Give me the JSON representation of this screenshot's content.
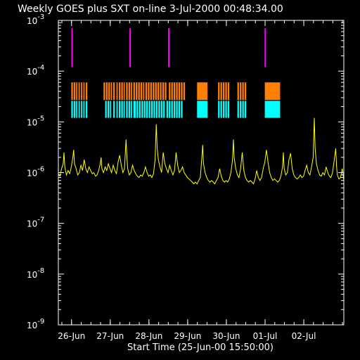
{
  "chart_data": {
    "type": "line",
    "title": "Weekly GOES plus SXT on-line  3-Jul-2000 00:48:34.00",
    "xlabel": "Start Time (25-Jun-00 15:50:00)",
    "ylabel": "",
    "yscale": "log",
    "ylim": [
      1e-09,
      0.001
    ],
    "xlim_hours": [
      0,
      177
    ],
    "y_ticks": [
      {
        "base": "10",
        "exp": "-9",
        "value": 1e-09
      },
      {
        "base": "10",
        "exp": "-8",
        "value": 1e-08
      },
      {
        "base": "10",
        "exp": "-7",
        "value": 1e-07
      },
      {
        "base": "10",
        "exp": "-6",
        "value": 1e-06
      },
      {
        "base": "10",
        "exp": "-5",
        "value": 1e-05
      },
      {
        "base": "10",
        "exp": "-4",
        "value": 0.0001
      },
      {
        "base": "10",
        "exp": "-3",
        "value": 0.001
      }
    ],
    "x_ticks": [
      {
        "label": "26-Jun",
        "hour": 8.17
      },
      {
        "label": "27-Jun",
        "hour": 32.17
      },
      {
        "label": "28-Jun",
        "hour": 56.17
      },
      {
        "label": "29-Jun",
        "hour": 80.17
      },
      {
        "label": "30-Jun",
        "hour": 104.17
      },
      {
        "label": "01-Jul",
        "hour": 128.17
      },
      {
        "label": "02-Jul",
        "hour": 152.17
      }
    ],
    "colors": {
      "goes_flux": "#ffff00",
      "magenta_marks": "#ff00ff",
      "orange_coverage": "#ff8000",
      "cyan_coverage": "#00ffff",
      "axes": "#ffffff"
    },
    "series": [
      {
        "color": "#ffff00",
        "points": [
          [
            0,
            9.5e-07
          ],
          [
            1,
            8.5e-07
          ],
          [
            2,
            1.2e-06
          ],
          [
            3,
            1.5e-06
          ],
          [
            3.5,
            2.5e-06
          ],
          [
            4,
            1.3e-06
          ],
          [
            5,
            9e-07
          ],
          [
            6,
            1.1e-06
          ],
          [
            7,
            9.5e-07
          ],
          [
            8,
            1.3e-06
          ],
          [
            9,
            2e-06
          ],
          [
            9.5,
            2.8e-06
          ],
          [
            10,
            1.5e-06
          ],
          [
            11,
            1.2e-06
          ],
          [
            12,
            9e-07
          ],
          [
            13,
            1e-06
          ],
          [
            14,
            1.4e-06
          ],
          [
            15,
            1.1e-06
          ],
          [
            16,
            1.8e-06
          ],
          [
            17,
            1.2e-06
          ],
          [
            18,
            1e-06
          ],
          [
            19,
            1.3e-06
          ],
          [
            20,
            1.1e-06
          ],
          [
            21,
            9.5e-07
          ],
          [
            22,
            1e-06
          ],
          [
            23,
            8.5e-07
          ],
          [
            24,
            9e-07
          ],
          [
            25,
            1.1e-06
          ],
          [
            26,
            1.5e-06
          ],
          [
            26.5,
            2e-06
          ],
          [
            27,
            1.2e-06
          ],
          [
            28,
            1e-06
          ],
          [
            29,
            1.3e-06
          ],
          [
            30,
            1.1e-06
          ],
          [
            31,
            1.5e-06
          ],
          [
            32,
            1.2e-06
          ],
          [
            33,
            1e-06
          ],
          [
            34,
            1.4e-06
          ],
          [
            35,
            1.1e-06
          ],
          [
            36,
            9.5e-07
          ],
          [
            37,
            1.6e-06
          ],
          [
            38,
            2.2e-06
          ],
          [
            39,
            1.4e-06
          ],
          [
            40,
            1e-06
          ],
          [
            41,
            1.2e-06
          ],
          [
            42,
            4.5e-06
          ],
          [
            42.5,
            2e-06
          ],
          [
            43,
            1.2e-06
          ],
          [
            44,
            9e-07
          ],
          [
            45,
            1e-06
          ],
          [
            46,
            1.4e-06
          ],
          [
            47,
            1.1e-06
          ],
          [
            48,
            9.5e-07
          ],
          [
            49,
            8.5e-07
          ],
          [
            50,
            8e-07
          ],
          [
            51,
            9e-07
          ],
          [
            52,
            8.5e-07
          ],
          [
            53,
            1e-06
          ],
          [
            54,
            1.3e-06
          ],
          [
            55,
            1e-06
          ],
          [
            56,
            8.5e-07
          ],
          [
            57,
            9e-07
          ],
          [
            58,
            8e-07
          ],
          [
            59,
            9.5e-07
          ],
          [
            60,
            1.8e-06
          ],
          [
            60.7,
            9e-06
          ],
          [
            61.3,
            3e-06
          ],
          [
            62,
            1.8e-06
          ],
          [
            63,
            1.3e-06
          ],
          [
            64,
            1e-06
          ],
          [
            65,
            2.5e-06
          ],
          [
            66,
            1.5e-06
          ],
          [
            67,
            1.2e-06
          ],
          [
            68,
            1e-06
          ],
          [
            69,
            1.4e-06
          ],
          [
            70,
            1.1e-06
          ],
          [
            71,
            9e-07
          ],
          [
            72,
            1.1e-06
          ],
          [
            73,
            2.5e-06
          ],
          [
            74,
            1.4e-06
          ],
          [
            75,
            1e-06
          ],
          [
            76,
            1.1e-06
          ],
          [
            77,
            1.3e-06
          ],
          [
            78,
            1e-06
          ],
          [
            79,
            9e-07
          ],
          [
            80,
            8e-07
          ],
          [
            81,
            7.5e-07
          ],
          [
            82,
            7e-07
          ],
          [
            83,
            6.5e-07
          ],
          [
            84,
            6e-07
          ],
          [
            85,
            6.5e-07
          ],
          [
            86,
            6e-07
          ],
          [
            87,
            7e-07
          ],
          [
            88,
            8e-07
          ],
          [
            89,
            2e-06
          ],
          [
            89.5,
            3.5e-06
          ],
          [
            90,
            1.5e-06
          ],
          [
            91,
            1e-06
          ],
          [
            92,
            8e-07
          ],
          [
            93,
            7e-07
          ],
          [
            94,
            6.5e-07
          ],
          [
            95,
            7e-07
          ],
          [
            96,
            6.5e-07
          ],
          [
            97,
            6e-07
          ],
          [
            98,
            7e-07
          ],
          [
            99,
            8e-07
          ],
          [
            100,
            1.2e-06
          ],
          [
            101,
            8.5e-07
          ],
          [
            102,
            7e-07
          ],
          [
            103,
            6.5e-07
          ],
          [
            104,
            7e-07
          ],
          [
            105,
            6.5e-07
          ],
          [
            106,
            7.5e-07
          ],
          [
            107,
            1e-06
          ],
          [
            108,
            1.8e-06
          ],
          [
            108.5,
            4.5e-06
          ],
          [
            109,
            2e-06
          ],
          [
            110,
            1.2e-06
          ],
          [
            111,
            9e-07
          ],
          [
            112,
            8e-07
          ],
          [
            113,
            1.2e-06
          ],
          [
            114,
            2.5e-06
          ],
          [
            115,
            1.1e-06
          ],
          [
            116,
            8e-07
          ],
          [
            117,
            7e-07
          ],
          [
            118,
            6.5e-07
          ],
          [
            119,
            7e-07
          ],
          [
            120,
            6.5e-07
          ],
          [
            121,
            6e-07
          ],
          [
            122,
            7.5e-07
          ],
          [
            123,
            1.1e-06
          ],
          [
            124,
            8e-07
          ],
          [
            125,
            7e-07
          ],
          [
            126,
            8e-07
          ],
          [
            127,
            1.2e-06
          ],
          [
            128,
            1.6e-06
          ],
          [
            129,
            2.8e-06
          ],
          [
            130,
            1.6e-06
          ],
          [
            131,
            1e-06
          ],
          [
            132,
            8e-07
          ],
          [
            133,
            7e-07
          ],
          [
            134,
            7.5e-07
          ],
          [
            135,
            7e-07
          ],
          [
            136,
            6.5e-07
          ],
          [
            137,
            7e-07
          ],
          [
            138,
            8.5e-07
          ],
          [
            139,
            1.3e-06
          ],
          [
            139.5,
            2.5e-06
          ],
          [
            140,
            1.2e-06
          ],
          [
            141,
            9e-07
          ],
          [
            142,
            1e-06
          ],
          [
            143,
            1.8e-06
          ],
          [
            144,
            2.4e-06
          ],
          [
            145,
            1.2e-06
          ],
          [
            146,
            9e-07
          ],
          [
            147,
            8e-07
          ],
          [
            148,
            7.5e-07
          ],
          [
            149,
            8e-07
          ],
          [
            150,
            9e-07
          ],
          [
            151,
            8e-07
          ],
          [
            152,
            8.5e-07
          ],
          [
            153,
            1.1e-06
          ],
          [
            154,
            1.4e-06
          ],
          [
            155,
            1e-06
          ],
          [
            156,
            9e-07
          ],
          [
            157,
            1.3e-06
          ],
          [
            158,
            2e-06
          ],
          [
            158.7,
            1.2e-05
          ],
          [
            159.2,
            3e-06
          ],
          [
            160,
            1.5e-06
          ],
          [
            161,
            1.1e-06
          ],
          [
            162,
            9e-07
          ],
          [
            163,
            8.5e-07
          ],
          [
            164,
            1e-06
          ],
          [
            165,
            9e-07
          ],
          [
            166,
            1.3e-06
          ],
          [
            167,
            1e-06
          ],
          [
            168,
            8.5e-07
          ],
          [
            169,
            8e-07
          ],
          [
            170,
            1e-06
          ],
          [
            171,
            1.7e-06
          ],
          [
            172,
            3e-06
          ],
          [
            172.5,
            1.3e-06
          ],
          [
            173,
            9e-07
          ],
          [
            174,
            7.5e-07
          ],
          [
            175,
            8e-07
          ],
          [
            176,
            1.2e-06
          ],
          [
            177,
            7e-07
          ]
        ]
      }
    ],
    "magenta_marks_hours": [
      8.5,
      44.5,
      68.5,
      128.3
    ],
    "orange_coverage_hours": [
      [
        8,
        9
      ],
      [
        9.5,
        10.5
      ],
      [
        11,
        11.8
      ],
      [
        12.5,
        13.3
      ],
      [
        14,
        14.8
      ],
      [
        15.5,
        16.3
      ],
      [
        17,
        18
      ],
      [
        28,
        29
      ],
      [
        29.5,
        30.5
      ],
      [
        31,
        32
      ],
      [
        32.5,
        33.3
      ],
      [
        34,
        35
      ],
      [
        36,
        36.8
      ],
      [
        37.5,
        38.5
      ],
      [
        39,
        40
      ],
      [
        40.5,
        41.2
      ],
      [
        42,
        43
      ],
      [
        43.5,
        44.5
      ],
      [
        45,
        45.8
      ],
      [
        46.5,
        47.5
      ],
      [
        48,
        49
      ],
      [
        49.5,
        50.5
      ],
      [
        51,
        52
      ],
      [
        52.5,
        53.3
      ],
      [
        54,
        55
      ],
      [
        55.5,
        56.5
      ],
      [
        57,
        58
      ],
      [
        58.5,
        59.5
      ],
      [
        60,
        61
      ],
      [
        61.5,
        62.5
      ],
      [
        63,
        64
      ],
      [
        64.5,
        65.5
      ],
      [
        66,
        67
      ],
      [
        68.5,
        69.5
      ],
      [
        70,
        71
      ],
      [
        71.5,
        72.5
      ],
      [
        73,
        74
      ],
      [
        74.5,
        75.5
      ],
      [
        76,
        77
      ],
      [
        77.5,
        78.5
      ],
      [
        86,
        92.5
      ],
      [
        99,
        100
      ],
      [
        100.5,
        101.5
      ],
      [
        102,
        103
      ],
      [
        103.5,
        104.5
      ],
      [
        105,
        106
      ],
      [
        111,
        112
      ],
      [
        112.5,
        113.5
      ],
      [
        114,
        115
      ],
      [
        115.5,
        116.5
      ],
      [
        128,
        137.5
      ]
    ],
    "cyan_coverage_hours": [
      [
        8,
        9
      ],
      [
        9.5,
        10.5
      ],
      [
        11,
        11.8
      ],
      [
        12.5,
        13.3
      ],
      [
        14,
        14.8
      ],
      [
        15.5,
        16.3
      ],
      [
        17,
        18
      ],
      [
        29,
        30
      ],
      [
        30.5,
        31.5
      ],
      [
        32,
        32.8
      ],
      [
        34,
        35
      ],
      [
        36,
        36.8
      ],
      [
        37.5,
        38.5
      ],
      [
        39,
        40
      ],
      [
        40.5,
        41.2
      ],
      [
        42,
        43
      ],
      [
        43.5,
        44.5
      ],
      [
        45,
        45.8
      ],
      [
        46.5,
        48
      ],
      [
        48.5,
        49.5
      ],
      [
        50,
        51
      ],
      [
        51.5,
        52.5
      ],
      [
        53,
        54
      ],
      [
        54.5,
        55.5
      ],
      [
        56,
        57
      ],
      [
        57.5,
        58.5
      ],
      [
        59,
        60
      ],
      [
        60.5,
        61.5
      ],
      [
        62,
        63
      ],
      [
        63.5,
        64.5
      ],
      [
        65,
        66
      ],
      [
        67,
        68
      ],
      [
        68.5,
        69.5
      ],
      [
        70,
        71
      ],
      [
        71.5,
        72.5
      ],
      [
        73,
        74
      ],
      [
        74.5,
        75.5
      ],
      [
        76,
        77
      ],
      [
        86,
        92.5
      ],
      [
        99,
        100
      ],
      [
        100.5,
        101.5
      ],
      [
        102,
        103
      ],
      [
        103.5,
        104.5
      ],
      [
        105,
        106
      ],
      [
        111,
        112
      ],
      [
        112.5,
        113.5
      ],
      [
        114,
        115
      ],
      [
        115.5,
        116.5
      ],
      [
        128,
        137.5
      ]
    ]
  }
}
